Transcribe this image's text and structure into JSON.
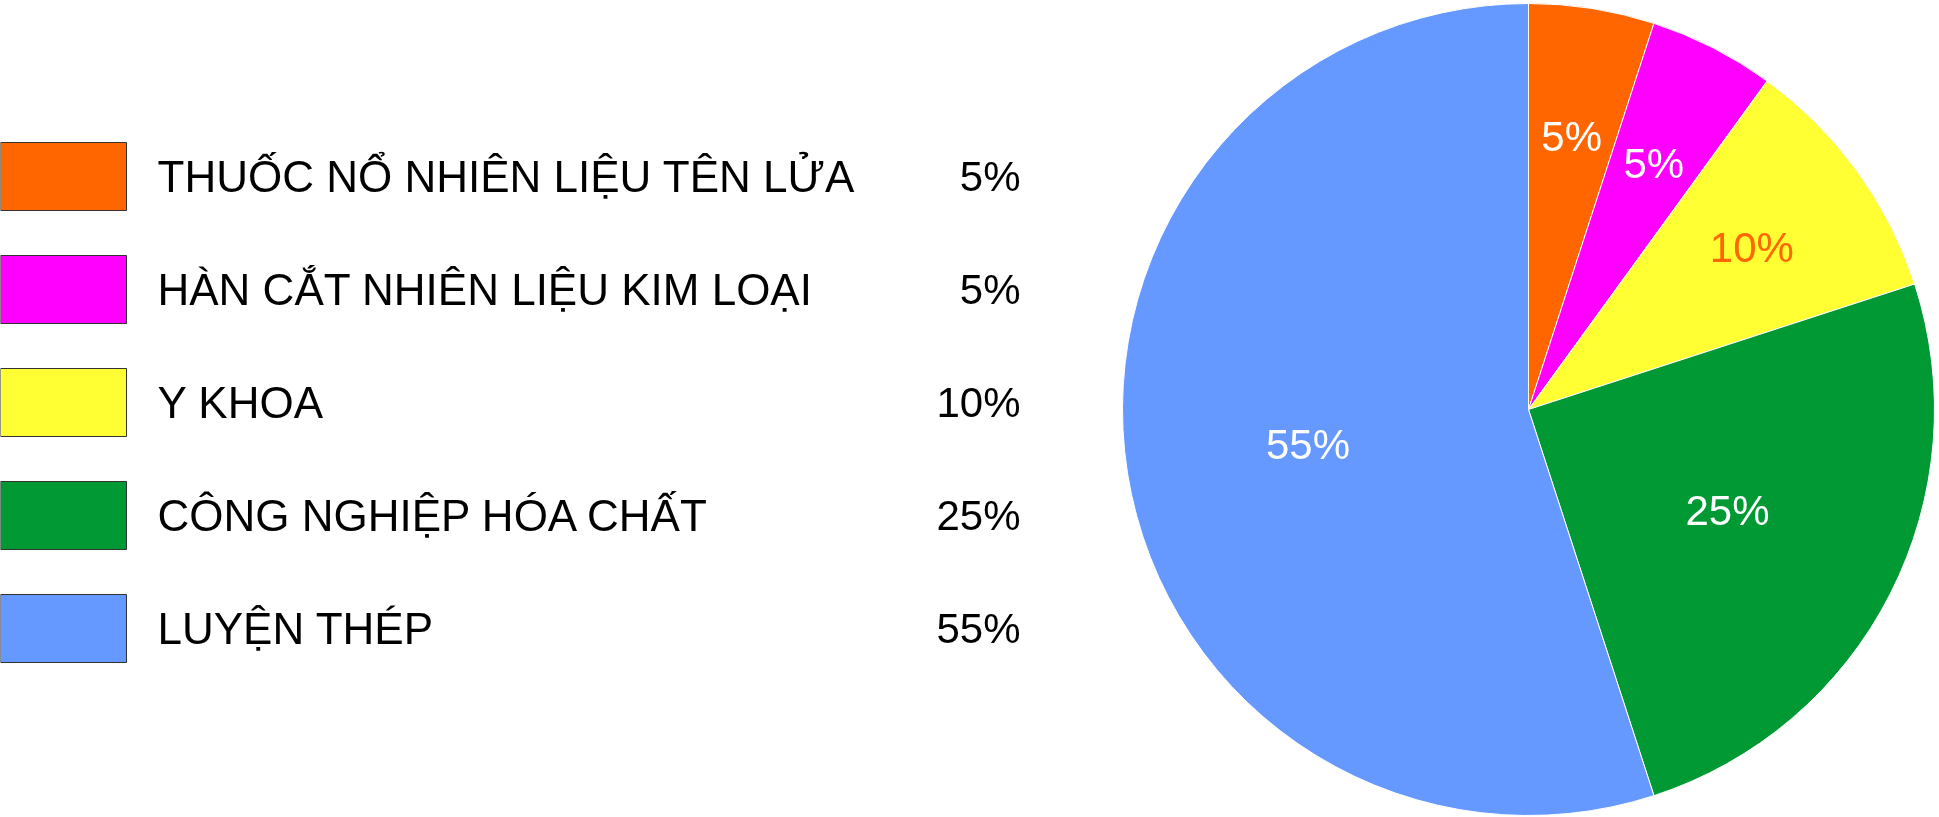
{
  "chart_data": {
    "type": "pie",
    "categories": [
      "THUỐC NỔ NHIÊN LIỆU TÊN LỬA",
      "HÀN CẮT NHIÊN LIỆU KIM LOẠI",
      "Y KHOA",
      "CÔNG NGHIỆP HÓA CHẤT",
      "LUYỆN THÉP"
    ],
    "values": [
      5,
      5,
      10,
      25,
      55
    ],
    "colors": [
      "#ff6600",
      "#ff00ff",
      "#ffff33",
      "#009933",
      "#6699ff"
    ],
    "value_labels": [
      "5%",
      "5%",
      "10%",
      "25%",
      "55%"
    ],
    "legend": "left"
  }
}
